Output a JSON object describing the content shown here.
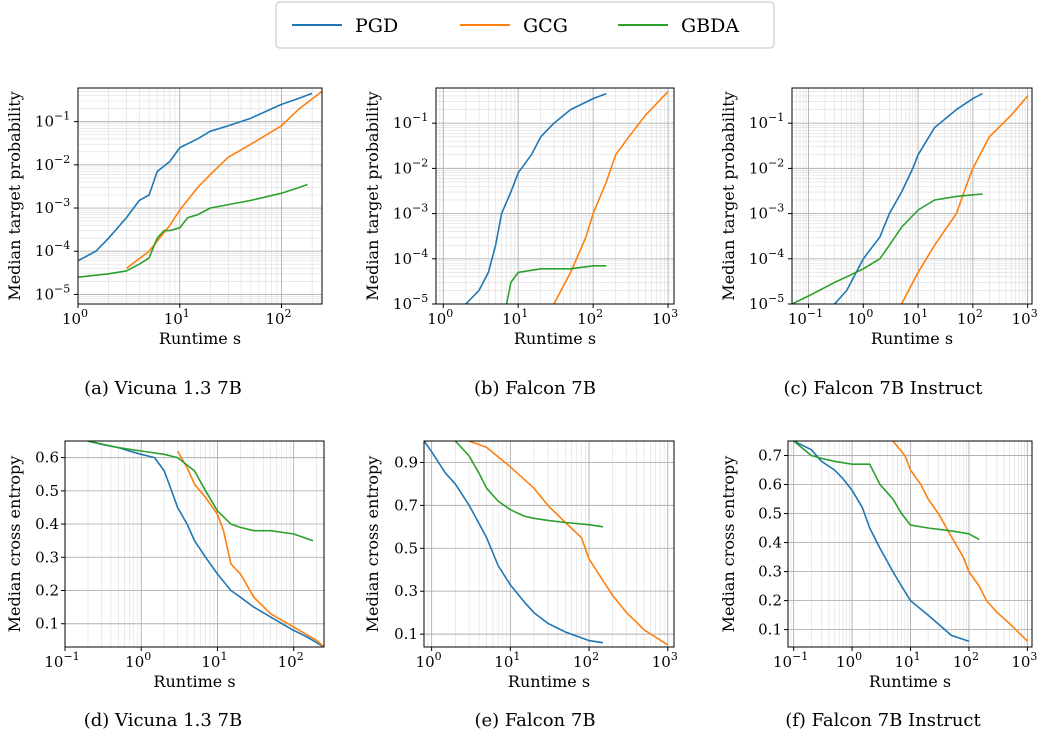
{
  "legend": {
    "entries": [
      {
        "name": "PGD",
        "color": "#1f77b4"
      },
      {
        "name": "GCG",
        "color": "#ff7f0e"
      },
      {
        "name": "GBDA",
        "color": "#2ca02c"
      }
    ],
    "placement": "top-center"
  },
  "chart_data": [
    {
      "type": "line",
      "caption": "(a) Vicuna 1.3 7B",
      "xlabel": "Runtime s",
      "ylabel": "Median target probability",
      "xscale": "log",
      "yscale": "log",
      "xlim": [
        1,
        250
      ],
      "ylim": [
        6e-06,
        0.6
      ],
      "xticks": [
        {
          "v": 1,
          "b": "10",
          "e": "0"
        },
        {
          "v": 10,
          "b": "10",
          "e": "1"
        },
        {
          "v": 100,
          "b": "10",
          "e": "2"
        }
      ],
      "yticks": [
        {
          "v": 1e-05,
          "b": "10",
          "e": "−5"
        },
        {
          "v": 0.0001,
          "b": "10",
          "e": "−4"
        },
        {
          "v": 0.001,
          "b": "10",
          "e": "−3"
        },
        {
          "v": 0.01,
          "b": "10",
          "e": "−2"
        },
        {
          "v": 0.1,
          "b": "10",
          "e": "−1"
        }
      ],
      "grid": true,
      "series": [
        {
          "name": "PGD",
          "color": "#1f77b4",
          "x": [
            1,
            1.5,
            2,
            3,
            4,
            5,
            6,
            8,
            10,
            15,
            20,
            30,
            50,
            100,
            150,
            200
          ],
          "y": [
            6e-05,
            0.0001,
            0.0002,
            0.0006,
            0.0015,
            0.002,
            0.007,
            0.012,
            0.025,
            0.04,
            0.06,
            0.08,
            0.12,
            0.25,
            0.35,
            0.45
          ]
        },
        {
          "name": "GCG",
          "color": "#ff7f0e",
          "x": [
            3,
            5,
            8,
            10,
            15,
            20,
            30,
            50,
            100,
            150,
            250
          ],
          "y": [
            4e-05,
            0.0001,
            0.0004,
            0.0009,
            0.003,
            0.006,
            0.015,
            0.03,
            0.08,
            0.2,
            0.5
          ]
        },
        {
          "name": "GBDA",
          "color": "#2ca02c",
          "x": [
            1,
            2,
            3,
            4,
            5,
            6,
            7,
            8,
            10,
            12,
            15,
            20,
            30,
            50,
            100,
            150,
            180
          ],
          "y": [
            2.5e-05,
            3e-05,
            3.5e-05,
            5e-05,
            7e-05,
            0.0002,
            0.0003,
            0.0003,
            0.00035,
            0.0006,
            0.0007,
            0.001,
            0.0012,
            0.0015,
            0.0022,
            0.003,
            0.0035
          ]
        }
      ]
    },
    {
      "type": "line",
      "caption": "(b) Falcon 7B",
      "xlabel": "Runtime s",
      "ylabel": "Median target probability",
      "xscale": "log",
      "yscale": "log",
      "xlim": [
        0.8,
        1200
      ],
      "ylim": [
        1e-05,
        0.6
      ],
      "xticks": [
        {
          "v": 1,
          "b": "10",
          "e": "0"
        },
        {
          "v": 10,
          "b": "10",
          "e": "1"
        },
        {
          "v": 100,
          "b": "10",
          "e": "2"
        },
        {
          "v": 1000,
          "b": "10",
          "e": "3"
        }
      ],
      "yticks": [
        {
          "v": 1e-05,
          "b": "10",
          "e": "−5"
        },
        {
          "v": 0.0001,
          "b": "10",
          "e": "−4"
        },
        {
          "v": 0.001,
          "b": "10",
          "e": "−3"
        },
        {
          "v": 0.01,
          "b": "10",
          "e": "−2"
        },
        {
          "v": 0.1,
          "b": "10",
          "e": "−1"
        }
      ],
      "grid": true,
      "series": [
        {
          "name": "PGD",
          "color": "#1f77b4",
          "x": [
            2,
            3,
            4,
            5,
            6,
            8,
            10,
            15,
            20,
            30,
            50,
            100,
            150
          ],
          "y": [
            1e-05,
            2e-05,
            5e-05,
            0.0002,
            0.001,
            0.003,
            0.008,
            0.02,
            0.05,
            0.1,
            0.2,
            0.35,
            0.45
          ]
        },
        {
          "name": "GCG",
          "color": "#ff7f0e",
          "x": [
            30,
            50,
            80,
            100,
            150,
            200,
            300,
            500,
            1000
          ],
          "y": [
            1e-05,
            5e-05,
            0.0003,
            0.001,
            0.005,
            0.02,
            0.05,
            0.15,
            0.5
          ]
        },
        {
          "name": "GBDA",
          "color": "#2ca02c",
          "x": [
            7,
            8,
            10,
            20,
            50,
            100,
            150
          ],
          "y": [
            1e-05,
            3e-05,
            5e-05,
            6e-05,
            6e-05,
            7e-05,
            7e-05
          ]
        }
      ]
    },
    {
      "type": "line",
      "caption": "(c) Falcon 7B Instruct",
      "xlabel": "Runtime s",
      "ylabel": "Median target probability",
      "xscale": "log",
      "yscale": "log",
      "xlim": [
        0.05,
        1200
      ],
      "ylim": [
        1e-05,
        0.6
      ],
      "xticks": [
        {
          "v": 0.1,
          "b": "10",
          "e": "−1"
        },
        {
          "v": 1,
          "b": "10",
          "e": "0"
        },
        {
          "v": 10,
          "b": "10",
          "e": "1"
        },
        {
          "v": 100,
          "b": "10",
          "e": "2"
        },
        {
          "v": 1000,
          "b": "10",
          "e": "3"
        }
      ],
      "yticks": [
        {
          "v": 1e-05,
          "b": "10",
          "e": "−5"
        },
        {
          "v": 0.0001,
          "b": "10",
          "e": "−4"
        },
        {
          "v": 0.001,
          "b": "10",
          "e": "−3"
        },
        {
          "v": 0.01,
          "b": "10",
          "e": "−2"
        },
        {
          "v": 0.1,
          "b": "10",
          "e": "−1"
        }
      ],
      "grid": true,
      "series": [
        {
          "name": "PGD",
          "color": "#1f77b4",
          "x": [
            0.3,
            0.5,
            1,
            2,
            3,
            5,
            8,
            10,
            20,
            50,
            100,
            150
          ],
          "y": [
            1e-05,
            2e-05,
            0.0001,
            0.0003,
            0.001,
            0.003,
            0.01,
            0.02,
            0.08,
            0.2,
            0.35,
            0.45
          ]
        },
        {
          "name": "GCG",
          "color": "#ff7f0e",
          "x": [
            5,
            8,
            10,
            20,
            50,
            80,
            100,
            200,
            500,
            1000
          ],
          "y": [
            1e-05,
            3e-05,
            5e-05,
            0.0002,
            0.001,
            0.005,
            0.01,
            0.05,
            0.15,
            0.4
          ]
        },
        {
          "name": "GBDA",
          "color": "#2ca02c",
          "x": [
            0.05,
            0.1,
            0.3,
            0.5,
            1,
            2,
            3,
            5,
            10,
            20,
            50,
            100,
            150
          ],
          "y": [
            1e-05,
            1.5e-05,
            3e-05,
            4e-05,
            6e-05,
            0.0001,
            0.0002,
            0.0005,
            0.0012,
            0.002,
            0.0024,
            0.0026,
            0.0027
          ]
        }
      ]
    },
    {
      "type": "line",
      "caption": "(d) Vicuna 1.3 7B",
      "xlabel": "Runtime s",
      "ylabel": "Median cross entropy",
      "xscale": "log",
      "yscale": "linear",
      "xlim": [
        0.1,
        250
      ],
      "ylim": [
        0.03,
        0.65
      ],
      "xticks": [
        {
          "v": 0.1,
          "b": "10",
          "e": "−1"
        },
        {
          "v": 1,
          "b": "10",
          "e": "0"
        },
        {
          "v": 10,
          "b": "10",
          "e": "1"
        },
        {
          "v": 100,
          "b": "10",
          "e": "2"
        }
      ],
      "yticks": [
        {
          "v": 0.1,
          "t": "0.1"
        },
        {
          "v": 0.2,
          "t": "0.2"
        },
        {
          "v": 0.3,
          "t": "0.3"
        },
        {
          "v": 0.4,
          "t": "0.4"
        },
        {
          "v": 0.5,
          "t": "0.5"
        },
        {
          "v": 0.6,
          "t": "0.6"
        }
      ],
      "grid": true,
      "series": [
        {
          "name": "PGD",
          "color": "#1f77b4",
          "x": [
            0.2,
            0.3,
            0.5,
            0.7,
            1,
            1.5,
            2,
            2.5,
            3,
            4,
            5,
            7,
            10,
            15,
            20,
            30,
            50,
            100,
            150,
            250
          ],
          "y": [
            0.65,
            0.64,
            0.63,
            0.62,
            0.61,
            0.6,
            0.56,
            0.5,
            0.45,
            0.4,
            0.35,
            0.3,
            0.25,
            0.2,
            0.18,
            0.15,
            0.12,
            0.08,
            0.06,
            0.03
          ]
        },
        {
          "name": "GCG",
          "color": "#ff7f0e",
          "x": [
            3,
            4,
            5,
            7,
            10,
            12,
            15,
            20,
            30,
            50,
            100,
            200,
            250
          ],
          "y": [
            0.62,
            0.57,
            0.52,
            0.48,
            0.43,
            0.38,
            0.28,
            0.25,
            0.18,
            0.13,
            0.09,
            0.05,
            0.03
          ]
        },
        {
          "name": "GBDA",
          "color": "#2ca02c",
          "x": [
            0.2,
            0.5,
            1,
            2,
            3,
            5,
            7,
            10,
            15,
            20,
            30,
            50,
            100,
            180
          ],
          "y": [
            0.65,
            0.63,
            0.62,
            0.61,
            0.6,
            0.56,
            0.5,
            0.44,
            0.4,
            0.39,
            0.38,
            0.38,
            0.37,
            0.35
          ]
        }
      ]
    },
    {
      "type": "line",
      "caption": "(e) Falcon 7B",
      "xlabel": "Runtime s",
      "ylabel": "Median cross entropy",
      "xscale": "log",
      "yscale": "linear",
      "xlim": [
        0.8,
        1200
      ],
      "ylim": [
        0.04,
        1.0
      ],
      "xticks": [
        {
          "v": 1,
          "b": "10",
          "e": "0"
        },
        {
          "v": 10,
          "b": "10",
          "e": "1"
        },
        {
          "v": 100,
          "b": "10",
          "e": "2"
        },
        {
          "v": 1000,
          "b": "10",
          "e": "3"
        }
      ],
      "yticks": [
        {
          "v": 0.1,
          "t": "0.1"
        },
        {
          "v": 0.3,
          "t": "0.3"
        },
        {
          "v": 0.5,
          "t": "0.5"
        },
        {
          "v": 0.7,
          "t": "0.7"
        },
        {
          "v": 0.9,
          "t": "0.9"
        }
      ],
      "grid": true,
      "series": [
        {
          "name": "PGD",
          "color": "#1f77b4",
          "x": [
            0.8,
            1,
            1.5,
            2,
            3,
            5,
            7,
            10,
            15,
            20,
            30,
            50,
            100,
            150
          ],
          "y": [
            1.0,
            0.95,
            0.85,
            0.8,
            0.7,
            0.55,
            0.42,
            0.33,
            0.25,
            0.2,
            0.15,
            0.11,
            0.07,
            0.06
          ]
        },
        {
          "name": "GCG",
          "color": "#ff7f0e",
          "x": [
            3,
            5,
            10,
            20,
            30,
            50,
            80,
            100,
            150,
            200,
            300,
            500,
            1000
          ],
          "y": [
            1.0,
            0.97,
            0.88,
            0.78,
            0.7,
            0.62,
            0.55,
            0.45,
            0.35,
            0.28,
            0.2,
            0.12,
            0.05
          ]
        },
        {
          "name": "GBDA",
          "color": "#2ca02c",
          "x": [
            2,
            3,
            4,
            5,
            7,
            10,
            15,
            20,
            30,
            50,
            100,
            150
          ],
          "y": [
            1.0,
            0.93,
            0.85,
            0.78,
            0.72,
            0.68,
            0.65,
            0.64,
            0.63,
            0.62,
            0.61,
            0.6
          ]
        }
      ]
    },
    {
      "type": "line",
      "caption": "(f) Falcon 7B Instruct",
      "xlabel": "Runtime s",
      "ylabel": "Median cross entropy",
      "xscale": "log",
      "yscale": "linear",
      "xlim": [
        0.08,
        1200
      ],
      "ylim": [
        0.04,
        0.75
      ],
      "xticks": [
        {
          "v": 0.1,
          "b": "10",
          "e": "−1"
        },
        {
          "v": 1,
          "b": "10",
          "e": "0"
        },
        {
          "v": 10,
          "b": "10",
          "e": "1"
        },
        {
          "v": 100,
          "b": "10",
          "e": "2"
        },
        {
          "v": 1000,
          "b": "10",
          "e": "3"
        }
      ],
      "yticks": [
        {
          "v": 0.1,
          "t": "0.1"
        },
        {
          "v": 0.2,
          "t": "0.2"
        },
        {
          "v": 0.3,
          "t": "0.3"
        },
        {
          "v": 0.4,
          "t": "0.4"
        },
        {
          "v": 0.5,
          "t": "0.5"
        },
        {
          "v": 0.6,
          "t": "0.6"
        },
        {
          "v": 0.7,
          "t": "0.7"
        }
      ],
      "grid": true,
      "series": [
        {
          "name": "PGD",
          "color": "#1f77b4",
          "x": [
            0.1,
            0.2,
            0.3,
            0.5,
            0.7,
            1,
            1.5,
            2,
            3,
            5,
            7,
            10,
            20,
            50,
            100
          ],
          "y": [
            0.75,
            0.72,
            0.68,
            0.65,
            0.62,
            0.58,
            0.52,
            0.45,
            0.38,
            0.3,
            0.25,
            0.2,
            0.15,
            0.08,
            0.06
          ]
        },
        {
          "name": "GCG",
          "color": "#ff7f0e",
          "x": [
            5,
            8,
            10,
            15,
            20,
            30,
            50,
            80,
            100,
            150,
            200,
            300,
            500,
            1000
          ],
          "y": [
            0.75,
            0.7,
            0.65,
            0.6,
            0.55,
            0.5,
            0.42,
            0.35,
            0.3,
            0.25,
            0.2,
            0.16,
            0.12,
            0.06
          ]
        },
        {
          "name": "GBDA",
          "color": "#2ca02c",
          "x": [
            0.1,
            0.2,
            0.3,
            0.5,
            1,
            2,
            3,
            5,
            7,
            10,
            20,
            50,
            100,
            150
          ],
          "y": [
            0.75,
            0.7,
            0.69,
            0.68,
            0.67,
            0.67,
            0.6,
            0.55,
            0.5,
            0.46,
            0.45,
            0.44,
            0.43,
            0.41
          ]
        }
      ]
    }
  ]
}
